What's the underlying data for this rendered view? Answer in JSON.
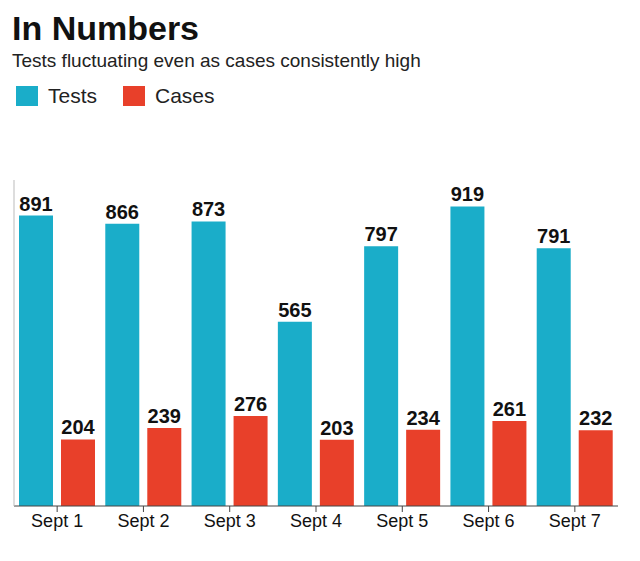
{
  "chart_data": {
    "type": "bar",
    "title": "In Numbers",
    "subtitle": "Tests fluctuating even as cases consistently high",
    "categories": [
      "Sept 1",
      "Sept 2",
      "Sept 3",
      "Sept 4",
      "Sept 5",
      "Sept 6",
      "Sept 7"
    ],
    "series": [
      {
        "name": "Tests",
        "color": "#1aadc9",
        "values": [
          891,
          866,
          873,
          565,
          797,
          919,
          791
        ]
      },
      {
        "name": "Cases",
        "color": "#e8402a",
        "values": [
          204,
          239,
          276,
          203,
          234,
          261,
          232
        ]
      }
    ],
    "ylim": [
      0,
      1000
    ],
    "data_labels": true,
    "tick_labels": "x",
    "legend": "top-left",
    "grid": false
  }
}
